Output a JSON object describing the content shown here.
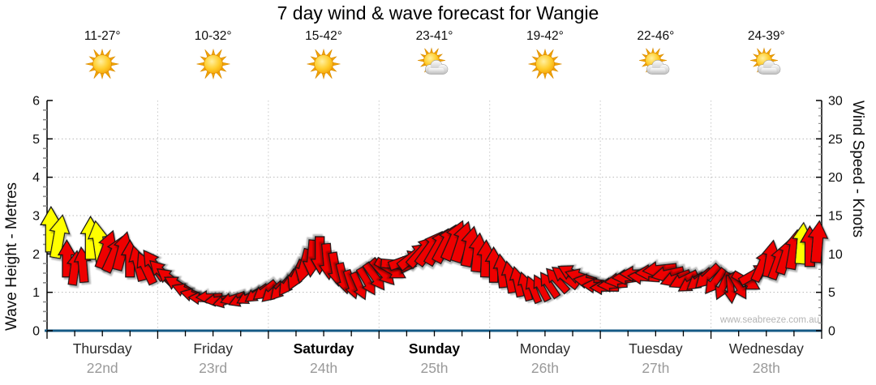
{
  "chart_data": {
    "type": "wind-arrows",
    "title": "7 day wind & wave forecast for Wangie",
    "watermark": "www.seabreeze.com.au",
    "left_axis": {
      "label": "Wave Height - Metres",
      "min": 0,
      "max": 6,
      "major_step": 1,
      "minor_step": 0.25
    },
    "right_axis": {
      "label": "Wind Speed - Knots",
      "min": 0,
      "max": 30,
      "major_step": 5,
      "minor_step": 1
    },
    "x_axis": {
      "days_shown": 7,
      "minor_ticks_per_day": 4,
      "grid_at_day_boundaries": true
    },
    "legend": {
      "arrow_meaning": "wind direction and speed (knots, right axis)"
    },
    "colors": {
      "arrow_red": "#ee0000",
      "arrow_yellow": "#ffff00",
      "arrow_outline": "#161616",
      "baseline": "#155a85",
      "axis": "#000000",
      "grid": "#b8b8b8",
      "grid_vertical": "#c8c8c8",
      "minor_tick": "#8f8f8f",
      "day_name": "#2b2b2b",
      "day_name_weekend": "#000000",
      "day_date": "#9a9a9a"
    },
    "days": [
      {
        "name": "Thursday",
        "date": "22nd",
        "temp": "11-27°",
        "icon": "sun",
        "weekend": false
      },
      {
        "name": "Friday",
        "date": "23rd",
        "temp": "10-32°",
        "icon": "sun",
        "weekend": false
      },
      {
        "name": "Saturday",
        "date": "24th",
        "temp": "15-42°",
        "icon": "sun",
        "weekend": true
      },
      {
        "name": "Sunday",
        "date": "25th",
        "temp": "23-41°",
        "icon": "sun-cloud",
        "weekend": true
      },
      {
        "name": "Monday",
        "date": "26th",
        "temp": "19-42°",
        "icon": "sun",
        "weekend": false
      },
      {
        "name": "Tuesday",
        "date": "27th",
        "temp": "22-46°",
        "icon": "sun-cloud",
        "weekend": false
      },
      {
        "name": "Wednesday",
        "date": "28th",
        "temp": "24-39°",
        "icon": "sun-cloud",
        "weekend": false
      }
    ],
    "arrows": [
      {
        "knots": 13.2,
        "dir": 0,
        "color": "yellow"
      },
      {
        "knots": 12.3,
        "dir": 10,
        "color": "yellow"
      },
      {
        "knots": 9.4,
        "dir": 0,
        "color": "red"
      },
      {
        "knots": 8.2,
        "dir": 8,
        "color": "red"
      },
      {
        "knots": 8.6,
        "dir": -5,
        "color": "red"
      },
      {
        "knots": 12.1,
        "dir": 0,
        "color": "yellow"
      },
      {
        "knots": 11.6,
        "dir": -8,
        "color": "yellow"
      },
      {
        "knots": 10.6,
        "dir": 20,
        "color": "red"
      },
      {
        "knots": 10.0,
        "dir": 25,
        "color": "red"
      },
      {
        "knots": 10.4,
        "dir": 15,
        "color": "red"
      },
      {
        "knots": 9.4,
        "dir": 0,
        "color": "red"
      },
      {
        "knots": 8.8,
        "dir": -15,
        "color": "red"
      },
      {
        "knots": 8.2,
        "dir": -25,
        "color": "red"
      },
      {
        "knots": 8.6,
        "dir": -35,
        "color": "red"
      },
      {
        "knots": 7.6,
        "dir": -45,
        "color": "red"
      },
      {
        "knots": 6.8,
        "dir": -52,
        "color": "red"
      },
      {
        "knots": 6.0,
        "dir": -60,
        "color": "red"
      },
      {
        "knots": 5.2,
        "dir": -68,
        "color": "red"
      },
      {
        "knots": 4.6,
        "dir": -75,
        "color": "red"
      },
      {
        "knots": 4.2,
        "dir": -85,
        "color": "red"
      },
      {
        "knots": 4.4,
        "dir": -92,
        "color": "red"
      },
      {
        "knots": 4.0,
        "dir": -98,
        "color": "red"
      },
      {
        "knots": 3.8,
        "dir": -105,
        "color": "red"
      },
      {
        "knots": 4.2,
        "dir": -108,
        "color": "red"
      },
      {
        "knots": 4.0,
        "dir": -112,
        "color": "red"
      },
      {
        "knots": 4.4,
        "dir": -118,
        "color": "red"
      },
      {
        "knots": 4.8,
        "dir": -124,
        "color": "red"
      },
      {
        "knots": 5.2,
        "dir": -128,
        "color": "red"
      },
      {
        "knots": 5.0,
        "dir": -132,
        "color": "red"
      },
      {
        "knots": 5.4,
        "dir": -138,
        "color": "red"
      },
      {
        "knots": 6.2,
        "dir": -145,
        "color": "red"
      },
      {
        "knots": 7.2,
        "dir": -155,
        "color": "red"
      },
      {
        "knots": 8.4,
        "dir": -165,
        "color": "red"
      },
      {
        "knots": 9.4,
        "dir": -175,
        "color": "red"
      },
      {
        "knots": 9.8,
        "dir": 180,
        "color": "red"
      },
      {
        "knots": 9.0,
        "dir": 175,
        "color": "red"
      },
      {
        "knots": 8.0,
        "dir": 170,
        "color": "red"
      },
      {
        "knots": 6.8,
        "dir": 166,
        "color": "red"
      },
      {
        "knots": 6.0,
        "dir": 162,
        "color": "red"
      },
      {
        "knots": 5.8,
        "dir": 156,
        "color": "red"
      },
      {
        "knots": 6.4,
        "dir": 150,
        "color": "red"
      },
      {
        "knots": 7.0,
        "dir": 145,
        "color": "red"
      },
      {
        "knots": 7.6,
        "dir": 138,
        "color": "red"
      },
      {
        "knots": 8.0,
        "dir": 120,
        "color": "red"
      },
      {
        "knots": 8.6,
        "dir": 95,
        "color": "red"
      },
      {
        "knots": 9.2,
        "dir": 70,
        "color": "red"
      },
      {
        "knots": 9.8,
        "dir": 52,
        "color": "red"
      },
      {
        "knots": 10.4,
        "dir": 42,
        "color": "red"
      },
      {
        "knots": 10.8,
        "dir": 36,
        "color": "red"
      },
      {
        "knots": 11.0,
        "dir": 30,
        "color": "red"
      },
      {
        "knots": 11.4,
        "dir": 28,
        "color": "red"
      },
      {
        "knots": 11.8,
        "dir": 24,
        "color": "red"
      },
      {
        "knots": 11.6,
        "dir": 18,
        "color": "red"
      },
      {
        "knots": 11.0,
        "dir": 12,
        "color": "red"
      },
      {
        "knots": 10.2,
        "dir": 6,
        "color": "red"
      },
      {
        "knots": 9.4,
        "dir": 2,
        "color": "red"
      },
      {
        "knots": 8.6,
        "dir": 0,
        "color": "red"
      },
      {
        "knots": 7.8,
        "dir": -6,
        "color": "red"
      },
      {
        "knots": 7.0,
        "dir": -10,
        "color": "red"
      },
      {
        "knots": 6.4,
        "dir": -12,
        "color": "red"
      },
      {
        "knots": 5.8,
        "dir": -16,
        "color": "red"
      },
      {
        "knots": 5.4,
        "dir": -22,
        "color": "red"
      },
      {
        "knots": 5.6,
        "dir": -28,
        "color": "red"
      },
      {
        "knots": 6.0,
        "dir": -34,
        "color": "red"
      },
      {
        "knots": 6.6,
        "dir": -42,
        "color": "red"
      },
      {
        "knots": 7.0,
        "dir": -52,
        "color": "red"
      },
      {
        "knots": 7.4,
        "dir": -62,
        "color": "red"
      },
      {
        "knots": 7.0,
        "dir": -72,
        "color": "red"
      },
      {
        "knots": 6.4,
        "dir": -80,
        "color": "red"
      },
      {
        "knots": 5.8,
        "dir": -86,
        "color": "red"
      },
      {
        "knots": 5.6,
        "dir": -90,
        "color": "red"
      },
      {
        "knots": 6.0,
        "dir": -94,
        "color": "red"
      },
      {
        "knots": 6.6,
        "dir": -98,
        "color": "red"
      },
      {
        "knots": 7.0,
        "dir": -94,
        "color": "red"
      },
      {
        "knots": 7.4,
        "dir": -90,
        "color": "red"
      },
      {
        "knots": 7.0,
        "dir": -86,
        "color": "red"
      },
      {
        "knots": 7.6,
        "dir": -92,
        "color": "red"
      },
      {
        "knots": 8.0,
        "dir": -96,
        "color": "red"
      },
      {
        "knots": 7.4,
        "dir": -102,
        "color": "red"
      },
      {
        "knots": 6.8,
        "dir": -110,
        "color": "red"
      },
      {
        "knots": 6.6,
        "dir": -116,
        "color": "red"
      },
      {
        "knots": 6.2,
        "dir": -122,
        "color": "red"
      },
      {
        "knots": 6.6,
        "dir": -128,
        "color": "red"
      },
      {
        "knots": 7.0,
        "dir": -134,
        "color": "red"
      },
      {
        "knots": 6.4,
        "dir": -142,
        "color": "red"
      },
      {
        "knots": 5.8,
        "dir": -155,
        "color": "red"
      },
      {
        "knots": 5.4,
        "dir": 175,
        "color": "red"
      },
      {
        "knots": 5.8,
        "dir": 150,
        "color": "red"
      },
      {
        "knots": 6.4,
        "dir": 120,
        "color": "red"
      },
      {
        "knots": 7.4,
        "dir": 60,
        "color": "red"
      },
      {
        "knots": 8.6,
        "dir": 25,
        "color": "red"
      },
      {
        "knots": 9.4,
        "dir": 10,
        "color": "red"
      },
      {
        "knots": 9.0,
        "dir": 20,
        "color": "red"
      },
      {
        "knots": 9.8,
        "dir": 18,
        "color": "red"
      },
      {
        "knots": 10.6,
        "dir": 10,
        "color": "red"
      },
      {
        "knots": 11.4,
        "dir": 5,
        "color": "yellow"
      },
      {
        "knots": 11.0,
        "dir": 0,
        "color": "red"
      },
      {
        "knots": 11.6,
        "dir": 5,
        "color": "red"
      }
    ]
  }
}
